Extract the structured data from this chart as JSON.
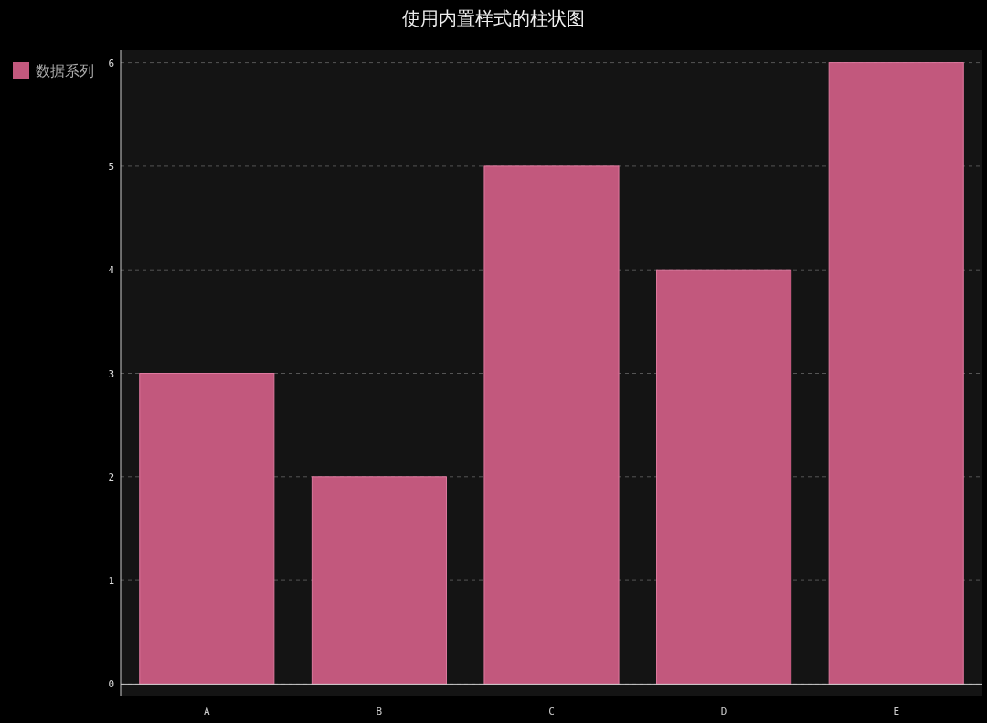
{
  "chart_data": {
    "type": "bar",
    "title": "使用内置样式的柱状图",
    "categories": [
      "A",
      "B",
      "C",
      "D",
      "E"
    ],
    "series": [
      {
        "name": "数据系列",
        "color": "#c2587d",
        "values": [
          3,
          2,
          5,
          4,
          6
        ]
      }
    ],
    "ylim": [
      -0.12,
      6.12
    ],
    "yticks": [
      0,
      1,
      2,
      3,
      4,
      5,
      6
    ],
    "grid": "y",
    "legend": "top left"
  }
}
